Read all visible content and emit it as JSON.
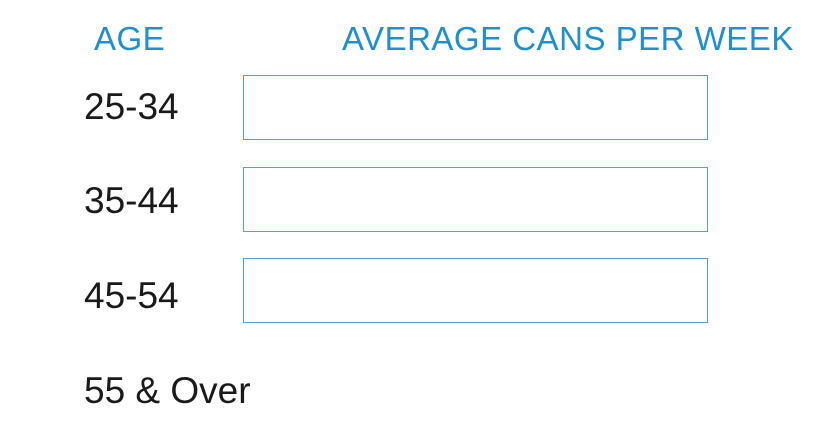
{
  "headers": {
    "age": "AGE",
    "cans": "AVERAGE CANS PER WEEK"
  },
  "rows": [
    {
      "age": "25-34",
      "value": ""
    },
    {
      "age": "35-44",
      "value": ""
    },
    {
      "age": "45-54",
      "value": ""
    },
    {
      "age": "55 & Over"
    }
  ],
  "colors": {
    "header": "#1f8fd1",
    "box_border": "#4fa3cf",
    "text": "#1a1a1a"
  }
}
